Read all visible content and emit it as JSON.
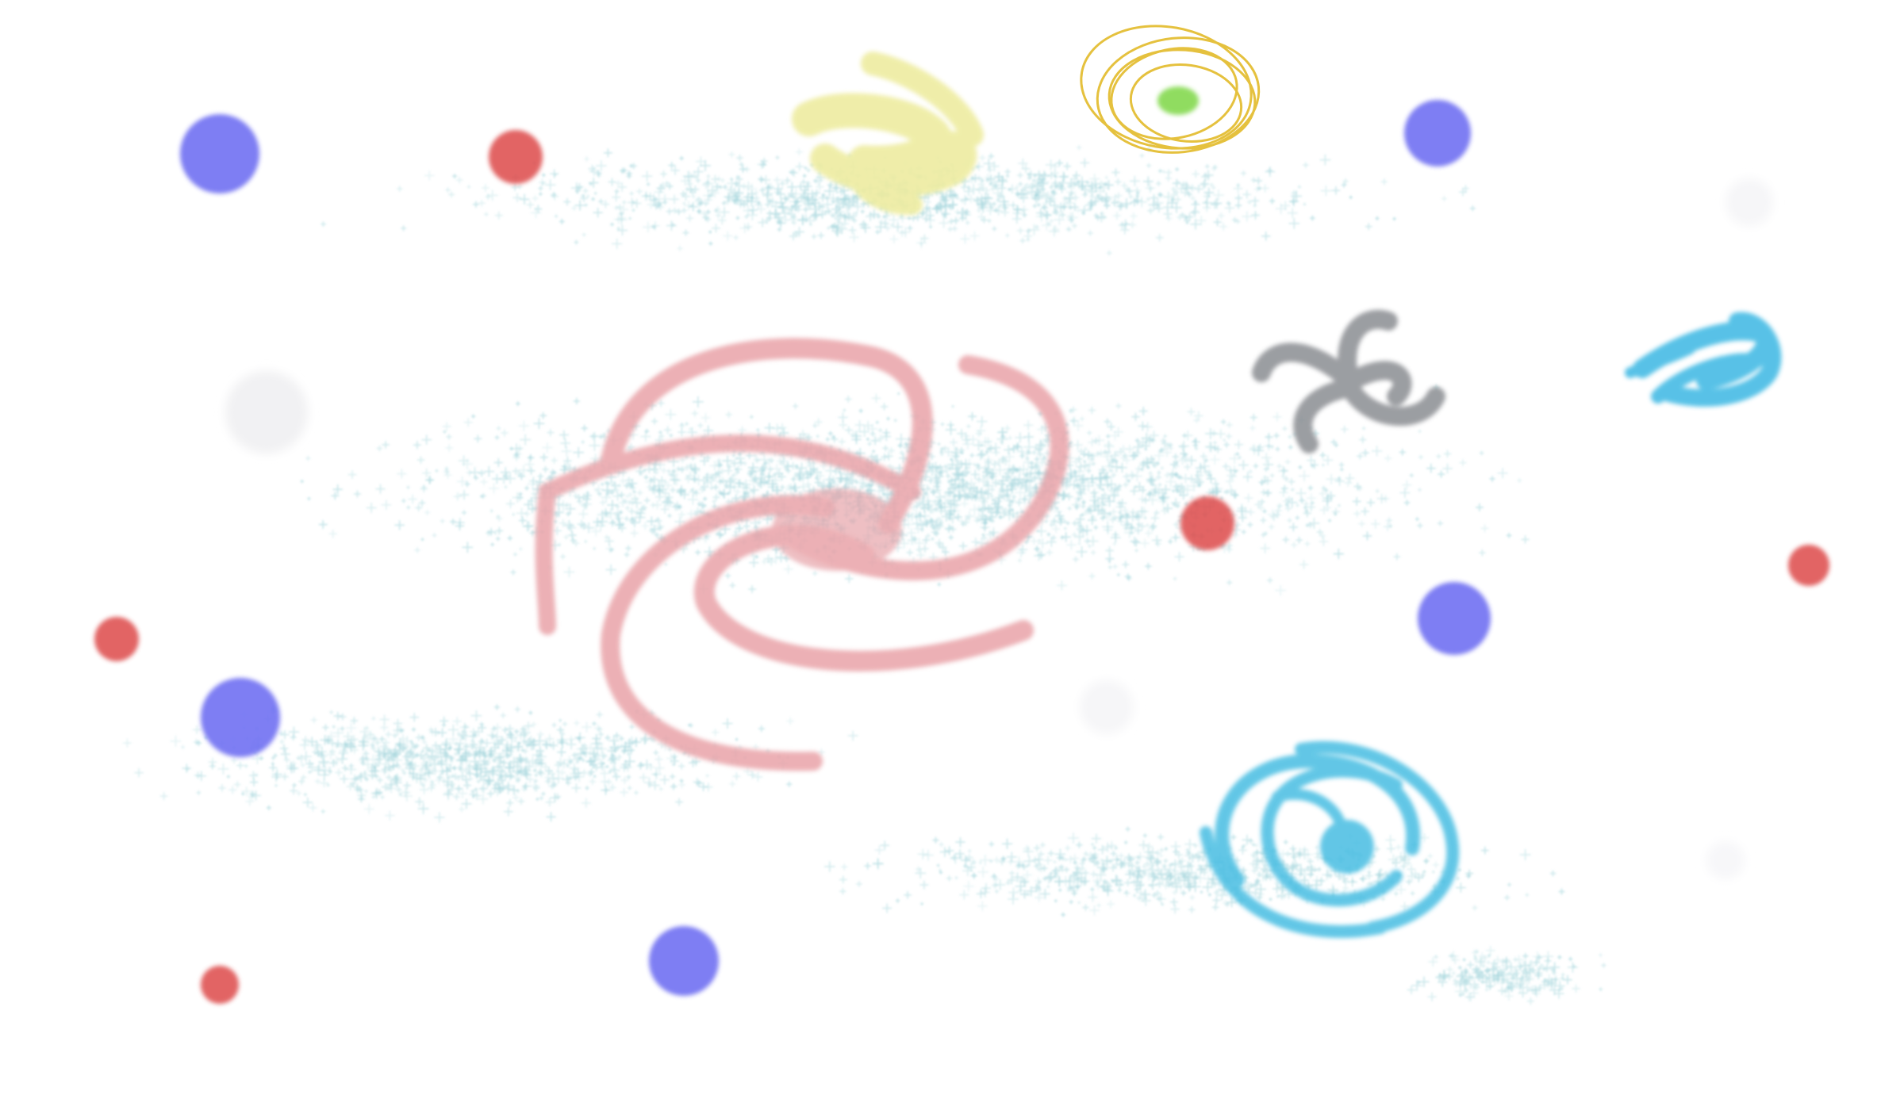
{
  "canvas": {
    "background": "#ffffff"
  },
  "palette": {
    "star_dust": "#9fd3da",
    "dot_blue": "#6f6ff2",
    "dot_red": "#dd4a4a",
    "galaxy_pink": "#e9a3a8",
    "galaxy_blue": "#47bde2",
    "galaxy_gray": "#8a8d92",
    "galaxy_yellow_soft": "#eeeca0",
    "ring_yellow": "#e3bb2a",
    "ring_core_green": "#84d94f",
    "nebula_blue": "#3bb7e3",
    "faint_white": "#f2f2f4"
  },
  "shapes": [
    {
      "kind": "spiral-galaxy",
      "color": "galaxy_pink",
      "name": "pink-spiral-galaxy"
    },
    {
      "kind": "spiral-galaxy",
      "color": "galaxy_blue",
      "name": "blue-swirl-galaxy"
    },
    {
      "kind": "pinwheel",
      "color": "galaxy_gray",
      "name": "gray-pinwheel-galaxy"
    },
    {
      "kind": "scribble",
      "color": "galaxy_yellow_soft",
      "name": "yellow-scribble-galaxy"
    },
    {
      "kind": "ring",
      "color": "ring_yellow",
      "name": "yellow-ring-planet"
    },
    {
      "kind": "scribble",
      "color": "nebula_blue",
      "name": "blue-scribble-nebula"
    },
    {
      "kind": "dot",
      "color": "dot_blue",
      "name": "blue-star"
    },
    {
      "kind": "dot",
      "color": "dot_red",
      "name": "red-star"
    }
  ]
}
